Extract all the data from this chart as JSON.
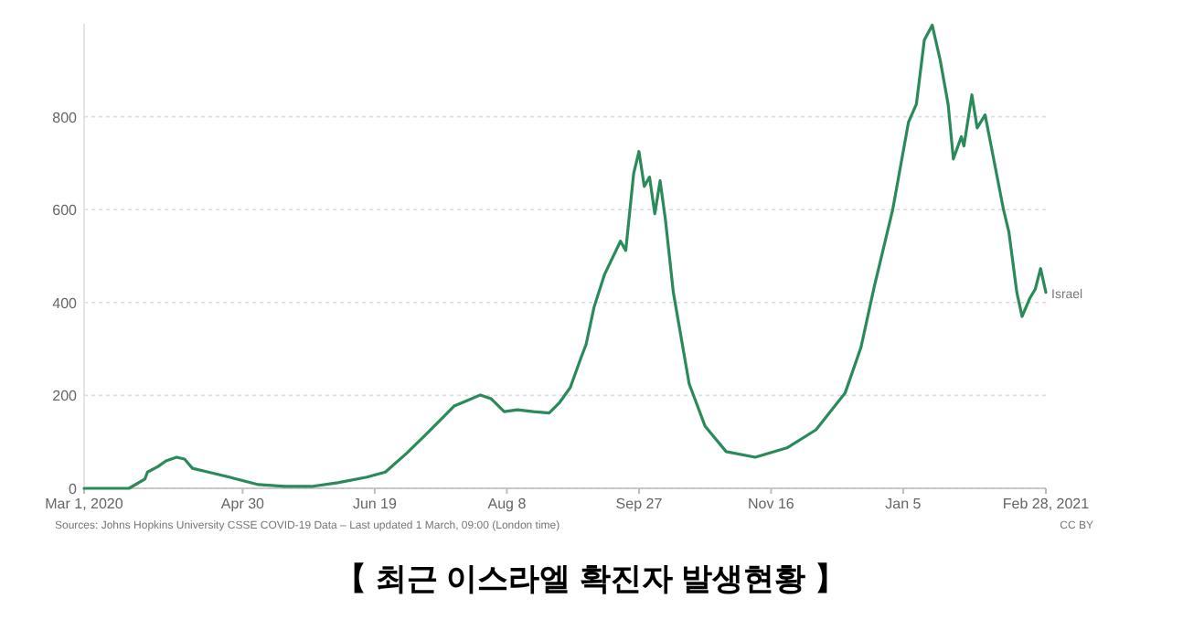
{
  "chart_data": {
    "type": "line",
    "title": "【 최근 이스라엘 확진자 발생현황 】",
    "annotations": [
      "Sources: Johns Hopkins University CSSE COVID-19 Data – Last updated 1 March, 09:00 (London time)",
      "CC BY"
    ],
    "xlim": [
      "2020-03-01",
      "2021-02-28"
    ],
    "xticks": [
      {
        "value": "2020-03-01",
        "label": "Mar 1, 2020"
      },
      {
        "value": "2020-04-30",
        "label": "Apr 30"
      },
      {
        "value": "2020-06-19",
        "label": "Jun 19"
      },
      {
        "value": "2020-08-08",
        "label": "Aug 8"
      },
      {
        "value": "2020-09-27",
        "label": "Sep 27"
      },
      {
        "value": "2020-11-16",
        "label": "Nov 16"
      },
      {
        "value": "2021-01-05",
        "label": "Jan 5"
      },
      {
        "value": "2021-02-28",
        "label": "Feb 28, 2021"
      }
    ],
    "ylim": [
      0,
      1000
    ],
    "yticks": [
      0,
      200,
      400,
      600,
      800
    ],
    "grid": "y",
    "legend": false,
    "line_style": "solid",
    "marker": "none",
    "x": [
      "2020-03-01",
      "2020-03-18",
      "2020-03-24",
      "2020-03-25",
      "2020-03-29",
      "2020-04-01",
      "2020-04-05",
      "2020-04-08",
      "2020-04-11",
      "2020-04-17",
      "2020-04-25",
      "2020-05-06",
      "2020-05-16",
      "2020-05-26",
      "2020-06-05",
      "2020-06-16",
      "2020-06-23",
      "2020-07-01",
      "2020-07-08",
      "2020-07-15",
      "2020-07-19",
      "2020-07-24",
      "2020-07-29",
      "2020-08-02",
      "2020-08-07",
      "2020-08-12",
      "2020-08-18",
      "2020-08-24",
      "2020-08-28",
      "2020-09-01",
      "2020-09-05",
      "2020-09-07",
      "2020-09-10",
      "2020-09-14",
      "2020-09-20",
      "2020-09-22",
      "2020-09-25",
      "2020-09-27",
      "2020-09-29",
      "2020-10-01",
      "2020-10-03",
      "2020-10-05",
      "2020-10-07",
      "2020-10-10",
      "2020-10-16",
      "2020-10-22",
      "2020-10-30",
      "2020-11-10",
      "2020-11-22",
      "2020-12-03",
      "2020-12-14",
      "2020-12-20",
      "2020-12-25",
      "2021-01-01",
      "2021-01-07",
      "2021-01-10",
      "2021-01-13",
      "2021-01-16",
      "2021-01-19",
      "2021-01-22",
      "2021-01-24",
      "2021-01-27",
      "2021-01-28",
      "2021-01-31",
      "2021-02-02",
      "2021-02-05",
      "2021-02-12",
      "2021-02-14",
      "2021-02-17",
      "2021-02-19",
      "2021-02-22",
      "2021-02-24",
      "2021-02-26",
      "2021-02-28"
    ],
    "series": [
      {
        "name": "Israel",
        "color": "#2a8a5a",
        "values": [
          0,
          0,
          20,
          35,
          47,
          59,
          67,
          63,
          43,
          35,
          24,
          8,
          4,
          4,
          12,
          24,
          35,
          75,
          114,
          154,
          177,
          189,
          201,
          193,
          165,
          169,
          165,
          162,
          185,
          217,
          280,
          310,
          390,
          461,
          532,
          512,
          678,
          725,
          650,
          670,
          591,
          662,
          579,
          422,
          225,
          134,
          79,
          67,
          87,
          126,
          205,
          303,
          433,
          599,
          788,
          827,
          965,
          997,
          922,
          827,
          709,
          757,
          737,
          847,
          776,
          804,
          599,
          552,
          422,
          370,
          410,
          429,
          473,
          422
        ]
      }
    ]
  }
}
